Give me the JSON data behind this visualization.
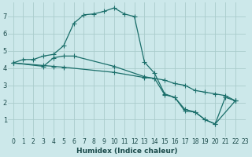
{
  "xlabel": "Humidex (Indice chaleur)",
  "bg_color": "#cce8ea",
  "grid_color": "#b0d4d8",
  "line_color": "#1a6e6a",
  "xlim": [
    -0.5,
    23
  ],
  "ylim": [
    0,
    7.8
  ],
  "xticks": [
    0,
    1,
    2,
    3,
    4,
    5,
    6,
    7,
    8,
    9,
    10,
    11,
    12,
    13,
    14,
    15,
    16,
    17,
    18,
    19,
    20,
    21,
    22,
    23
  ],
  "yticks": [
    1,
    2,
    3,
    4,
    5,
    6,
    7
  ],
  "series1_x": [
    0,
    1,
    2,
    3,
    4,
    5,
    6,
    7,
    8,
    9,
    10,
    11,
    12,
    13,
    14,
    15,
    16,
    17,
    18,
    19,
    20,
    21,
    22
  ],
  "series1_y": [
    4.3,
    4.5,
    4.5,
    4.7,
    4.8,
    5.3,
    6.6,
    7.1,
    7.15,
    7.3,
    7.5,
    7.15,
    7.0,
    4.35,
    3.7,
    2.5,
    2.3,
    1.6,
    1.45,
    1.0,
    0.75,
    2.3,
    2.1
  ],
  "series2_x": [
    0,
    3,
    4,
    5,
    10,
    13,
    14,
    15,
    16,
    17,
    18,
    19,
    20,
    21,
    22
  ],
  "series2_y": [
    4.3,
    4.15,
    4.1,
    4.05,
    3.75,
    3.45,
    3.4,
    3.3,
    3.1,
    3.0,
    2.7,
    2.6,
    2.5,
    2.4,
    2.1
  ],
  "series3_x": [
    0,
    3,
    4,
    5,
    6,
    10,
    13,
    14,
    15,
    16,
    17,
    18,
    19,
    20,
    22
  ],
  "series3_y": [
    4.3,
    4.1,
    4.6,
    4.7,
    4.7,
    4.1,
    3.5,
    3.4,
    2.45,
    2.3,
    1.5,
    1.45,
    1.0,
    0.75,
    2.1
  ]
}
